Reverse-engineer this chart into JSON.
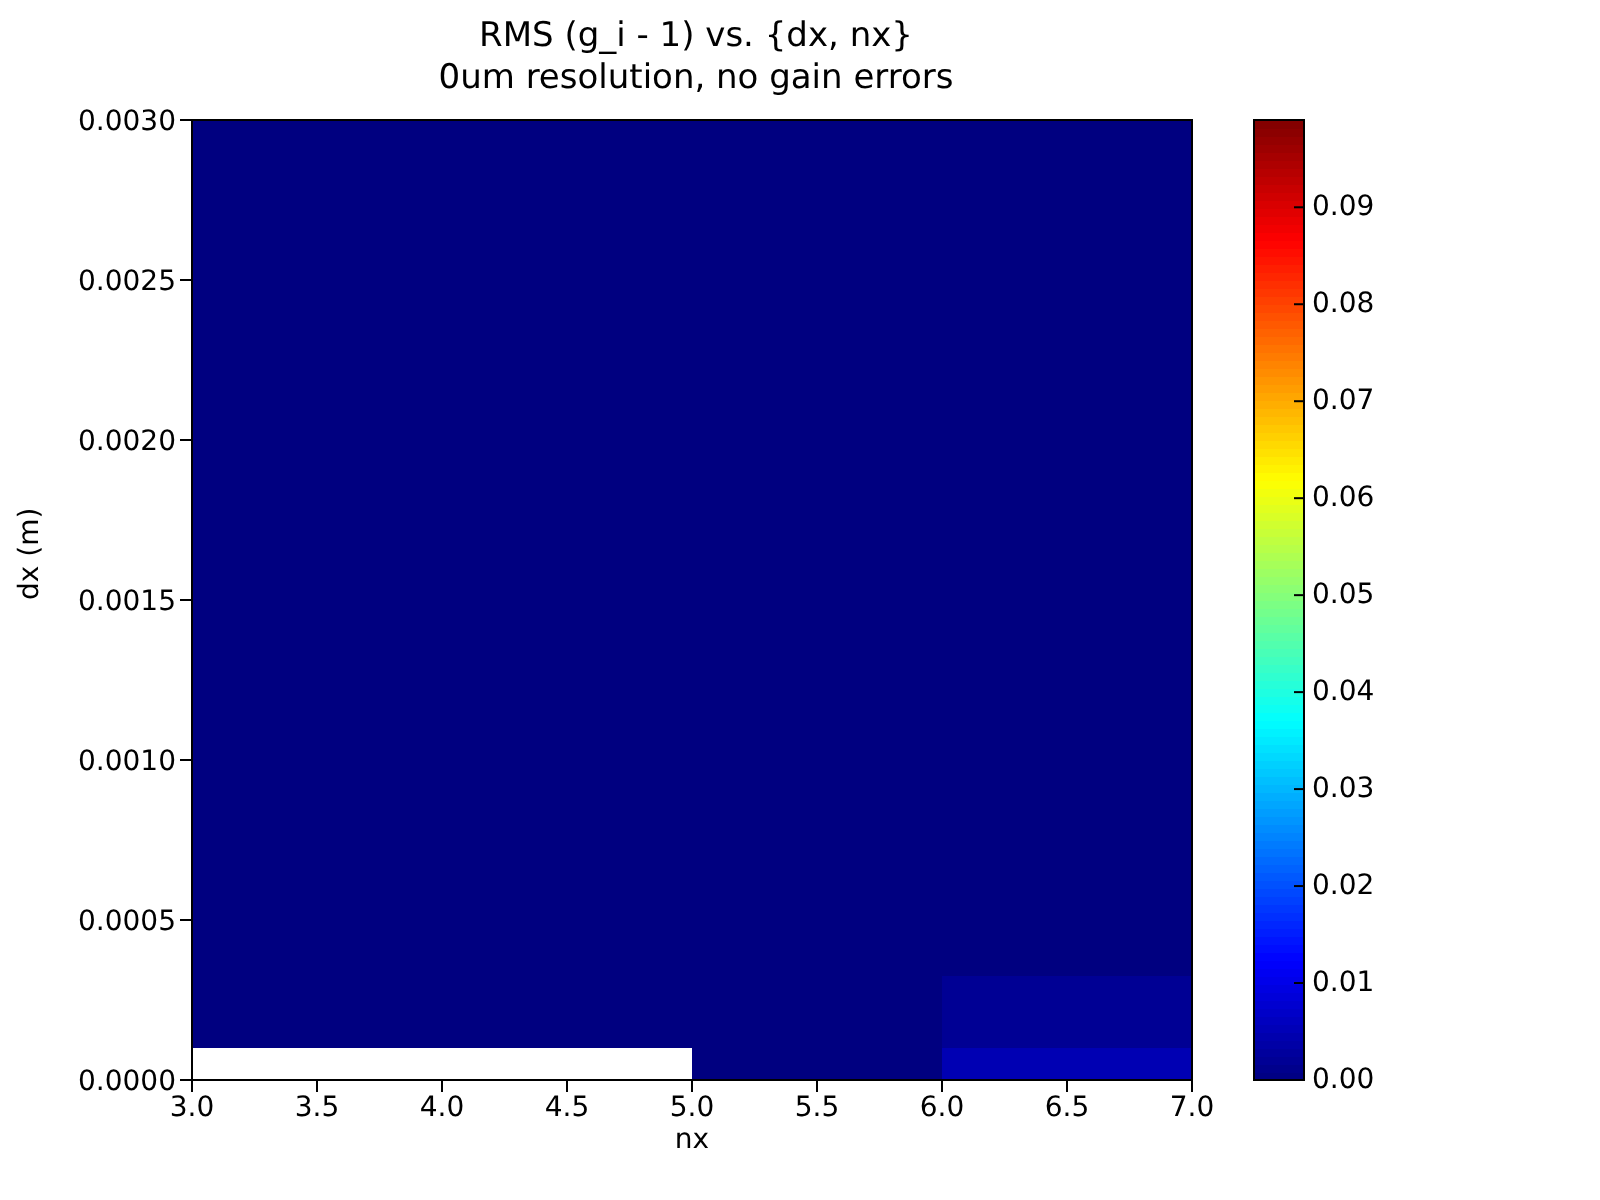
{
  "chart_data": {
    "type": "heatmap",
    "title": "RMS (g_i - 1) vs. {dx, nx}",
    "subtitle": "0um resolution, no gain errors",
    "xlabel": "nx",
    "ylabel": "dx (m)",
    "x": [
      3.5,
      4.5,
      5.5,
      6.5
    ],
    "y": [
      0.0025,
      0.0015,
      0.0005,
      0.00015,
      5e-05
    ],
    "cells": [
      [
        0,
        0,
        0,
        0
      ],
      [
        0,
        0,
        0,
        0
      ],
      [
        0,
        0,
        0,
        0
      ],
      [
        0,
        0,
        0,
        0.002
      ],
      [
        null,
        null,
        0,
        0.005
      ]
    ],
    "xlim": [
      3,
      7
    ],
    "xticks": [
      {
        "value": 3,
        "label": "3.0"
      },
      {
        "value": 3.5,
        "label": "3.5"
      },
      {
        "value": 4,
        "label": "4.0"
      },
      {
        "value": 4.5,
        "label": "4.5"
      },
      {
        "value": 5,
        "label": "5.0"
      },
      {
        "value": 5.5,
        "label": "5.5"
      },
      {
        "value": 6,
        "label": "6.0"
      },
      {
        "value": 6.5,
        "label": "6.5"
      },
      {
        "value": 7,
        "label": "7.0"
      }
    ],
    "ylim": [
      0,
      0.003
    ],
    "yticks": [
      {
        "value": 0,
        "label": "0.0000"
      },
      {
        "value": 0.0005,
        "label": "0.0005"
      },
      {
        "value": 0.001,
        "label": "0.0010"
      },
      {
        "value": 0.0015,
        "label": "0.0015"
      },
      {
        "value": 0.002,
        "label": "0.0020"
      },
      {
        "value": 0.0025,
        "label": "0.0025"
      },
      {
        "value": 0.003,
        "label": "0.0030"
      }
    ],
    "clim": [
      0,
      0.099
    ],
    "cticks": [
      {
        "value": 0,
        "label": "0.00"
      },
      {
        "value": 0.01,
        "label": "0.01"
      },
      {
        "value": 0.02,
        "label": "0.02"
      },
      {
        "value": 0.03,
        "label": "0.03"
      },
      {
        "value": 0.04,
        "label": "0.04"
      },
      {
        "value": 0.05,
        "label": "0.05"
      },
      {
        "value": 0.06,
        "label": "0.06"
      },
      {
        "value": 0.07,
        "label": "0.07"
      },
      {
        "value": 0.08,
        "label": "0.08"
      },
      {
        "value": 0.09,
        "label": "0.09"
      }
    ]
  }
}
